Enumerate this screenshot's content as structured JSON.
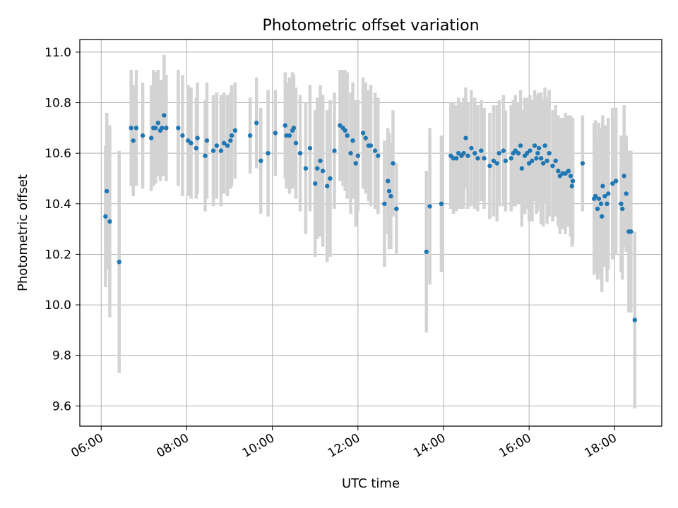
{
  "chart_data": {
    "type": "scatter",
    "title": "Photometric offset variation",
    "xlabel": "UTC time",
    "ylabel": "Photometric offset",
    "x_unit": "hours UTC",
    "xlim": [
      5.5,
      19.1
    ],
    "ylim": [
      9.52,
      11.05
    ],
    "grid": true,
    "xticks": [
      6,
      8,
      10,
      12,
      14,
      16,
      18
    ],
    "xtick_labels": [
      "06:00",
      "08:00",
      "10:00",
      "12:00",
      "14:00",
      "16:00",
      "18:00"
    ],
    "yticks": [
      9.6,
      9.8,
      10.0,
      10.2,
      10.4,
      10.6,
      10.8,
      11.0
    ],
    "ytick_labels": [
      "9.6",
      "9.8",
      "10.0",
      "10.2",
      "10.4",
      "10.6",
      "10.8",
      "11.0"
    ],
    "colors": {
      "point": "#1f77b4",
      "errorbar": "#d3d3d3",
      "grid": "#b0b0b0"
    },
    "series": [
      {
        "x": [
          6.1,
          6.13,
          6.2,
          6.42,
          6.7,
          6.75,
          6.82,
          6.97,
          7.17,
          7.22,
          7.27,
          7.33,
          7.38,
          7.42,
          7.47,
          7.52,
          7.8,
          7.9,
          8.03,
          8.1,
          8.22,
          8.25,
          8.43,
          8.47,
          8.62,
          8.7,
          8.8,
          8.87,
          8.95,
          9.02,
          9.05,
          9.13,
          9.48,
          9.63,
          9.73,
          9.9,
          10.07,
          10.3,
          10.33,
          10.4,
          10.47,
          10.5,
          10.55,
          10.65,
          10.78,
          10.88,
          11.0,
          11.05,
          11.12,
          11.18,
          11.28,
          11.35,
          11.45,
          11.58,
          11.65,
          11.7,
          11.75,
          11.83,
          11.88,
          11.95,
          12.0,
          12.12,
          12.18,
          12.25,
          12.3,
          12.4,
          12.47,
          12.62,
          12.7,
          12.73,
          12.77,
          12.82,
          12.9,
          13.6,
          13.68,
          13.95,
          14.17,
          14.23,
          14.3,
          14.35,
          14.42,
          14.47,
          14.52,
          14.57,
          14.65,
          14.73,
          14.8,
          14.88,
          14.95,
          15.08,
          15.17,
          15.25,
          15.3,
          15.4,
          15.45,
          15.58,
          15.63,
          15.68,
          15.75,
          15.8,
          15.83,
          15.9,
          15.95,
          16.0,
          16.02,
          16.07,
          16.13,
          16.17,
          16.2,
          16.23,
          16.28,
          16.33,
          16.37,
          16.42,
          16.47,
          16.55,
          16.62,
          16.68,
          16.72,
          16.78,
          16.85,
          16.92,
          16.97,
          17.0,
          17.02,
          17.25,
          17.52,
          17.55,
          17.6,
          17.63,
          17.68,
          17.7,
          17.72,
          17.77,
          17.82,
          17.85,
          17.95,
          18.03,
          18.15,
          18.18,
          18.22,
          18.27,
          18.33,
          18.38,
          18.47
        ],
        "y": [
          10.35,
          10.45,
          10.33,
          10.17,
          10.7,
          10.65,
          10.7,
          10.67,
          10.66,
          10.7,
          10.7,
          10.72,
          10.69,
          10.7,
          10.75,
          10.7,
          10.7,
          10.67,
          10.65,
          10.64,
          10.62,
          10.66,
          10.59,
          10.65,
          10.61,
          10.63,
          10.61,
          10.64,
          10.63,
          10.65,
          10.67,
          10.69,
          10.67,
          10.72,
          10.57,
          10.6,
          10.68,
          10.71,
          10.67,
          10.67,
          10.69,
          10.7,
          10.64,
          10.6,
          10.54,
          10.62,
          10.48,
          10.54,
          10.57,
          10.53,
          10.47,
          10.5,
          10.61,
          10.71,
          10.7,
          10.69,
          10.67,
          10.6,
          10.65,
          10.56,
          10.59,
          10.68,
          10.66,
          10.63,
          10.63,
          10.61,
          10.59,
          10.4,
          10.49,
          10.45,
          10.43,
          10.56,
          10.38,
          10.21,
          10.39,
          10.4,
          10.59,
          10.58,
          10.58,
          10.6,
          10.59,
          10.6,
          10.66,
          10.59,
          10.62,
          10.6,
          10.58,
          10.61,
          10.58,
          10.55,
          10.57,
          10.56,
          10.6,
          10.61,
          10.57,
          10.58,
          10.6,
          10.61,
          10.6,
          10.63,
          10.54,
          10.59,
          10.6,
          10.56,
          10.61,
          10.57,
          10.63,
          10.58,
          10.6,
          10.62,
          10.58,
          10.56,
          10.63,
          10.57,
          10.6,
          10.55,
          10.57,
          10.53,
          10.51,
          10.52,
          10.52,
          10.53,
          10.51,
          10.47,
          10.49,
          10.56,
          10.42,
          10.43,
          10.38,
          10.42,
          10.4,
          10.35,
          10.47,
          10.43,
          10.4,
          10.44,
          10.48,
          10.49,
          10.4,
          10.38,
          10.51,
          10.44,
          10.29,
          10.29,
          9.94
        ],
        "yerr": [
          0.28,
          0.31,
          0.38,
          0.44,
          0.23,
          0.22,
          0.23,
          0.21,
          0.21,
          0.23,
          0.22,
          0.21,
          0.2,
          0.19,
          0.24,
          0.21,
          0.23,
          0.24,
          0.22,
          0.22,
          0.2,
          0.22,
          0.22,
          0.23,
          0.22,
          0.21,
          0.22,
          0.2,
          0.2,
          0.19,
          0.2,
          0.19,
          0.15,
          0.18,
          0.21,
          0.25,
          0.17,
          0.21,
          0.21,
          0.23,
          0.23,
          0.21,
          0.22,
          0.23,
          0.26,
          0.25,
          0.29,
          0.28,
          0.3,
          0.3,
          0.3,
          0.31,
          0.23,
          0.22,
          0.23,
          0.24,
          0.25,
          0.24,
          0.23,
          0.25,
          0.22,
          0.22,
          0.22,
          0.22,
          0.24,
          0.23,
          0.23,
          0.25,
          0.21,
          0.23,
          0.21,
          0.21,
          0.18,
          0.32,
          0.31,
          0.27,
          0.21,
          0.22,
          0.21,
          0.22,
          0.21,
          0.22,
          0.2,
          0.21,
          0.23,
          0.22,
          0.21,
          0.2,
          0.2,
          0.21,
          0.22,
          0.23,
          0.21,
          0.22,
          0.2,
          0.21,
          0.21,
          0.22,
          0.2,
          0.22,
          0.23,
          0.23,
          0.22,
          0.23,
          0.22,
          0.24,
          0.22,
          0.22,
          0.23,
          0.22,
          0.26,
          0.25,
          0.23,
          0.25,
          0.25,
          0.22,
          0.22,
          0.22,
          0.23,
          0.22,
          0.24,
          0.22,
          0.24,
          0.24,
          0.25,
          0.19,
          0.3,
          0.3,
          0.28,
          0.3,
          0.3,
          0.3,
          0.28,
          0.28,
          0.31,
          0.3,
          0.3,
          0.29,
          0.27,
          0.28,
          0.28,
          0.23,
          0.32,
          0.32,
          0.35
        ]
      }
    ]
  }
}
